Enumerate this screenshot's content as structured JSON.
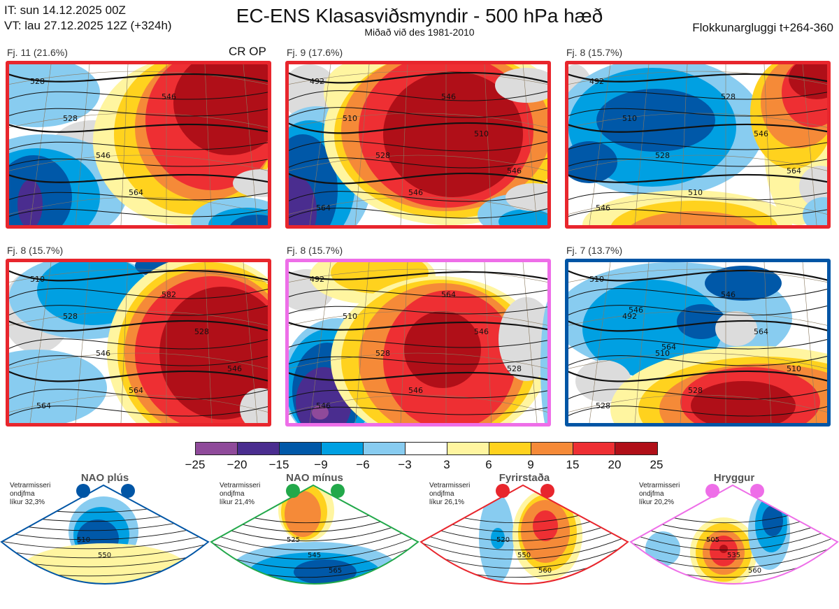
{
  "header": {
    "init_time": "IT: sun 14.12.2025 00Z",
    "valid_time": "VT: lau 27.12.2025 12Z  (+324h)",
    "title": "EC-ENS Klasasviðsmyndir - 500 hPa hæð",
    "subtitle": "Miðað við des 1981-2010",
    "window": "Flokkunargluggi t+264-360"
  },
  "crop_label": "CR OP",
  "panels": [
    {
      "label": "Fj. 11 (21.6%)",
      "border": "#e8262d",
      "contours": [
        "528",
        "528",
        "546",
        "564",
        "546"
      ]
    },
    {
      "label": "Fj. 9 (17.6%)",
      "border": "#e8262d",
      "contours": [
        "492",
        "510",
        "528",
        "546",
        "546",
        "510",
        "546",
        "564"
      ]
    },
    {
      "label": "Fj. 8 (15.7%)",
      "border": "#e8262d",
      "contours": [
        "492",
        "510",
        "528",
        "510",
        "528",
        "546",
        "564",
        "546"
      ]
    },
    {
      "label": "Fj. 8 (15.7%)",
      "border": "#e8262d",
      "contours": [
        "510",
        "528",
        "546",
        "564",
        "582",
        "528",
        "546",
        "564"
      ]
    },
    {
      "label": "Fj. 8 (15.7%)",
      "border": "#ee6ee8",
      "contours": [
        "492",
        "510",
        "528",
        "546",
        "564",
        "546",
        "528",
        "546"
      ]
    },
    {
      "label": "Fj. 7 (13.7%)",
      "border": "#0055a5",
      "contours": [
        "510",
        "492",
        "510",
        "528",
        "546",
        "564",
        "510",
        "528",
        "546",
        "564"
      ]
    }
  ],
  "colorbar": {
    "ticks": [
      "−25",
      "−20",
      "−15",
      "−9",
      "−6",
      "−3",
      "3",
      "6",
      "9",
      "15",
      "20",
      "25"
    ],
    "colors": [
      "#8f4a9a",
      "#4a2d8f",
      "#0058a8",
      "#00a0e2",
      "#88ccf0",
      "#ffffff",
      "#fff5a0",
      "#ffd21e",
      "#f58a38",
      "#ee2f33",
      "#b00f18"
    ]
  },
  "regimes": [
    {
      "name": "NAO plús",
      "line1": "Vetrarmisseri",
      "line2": "ondjfma",
      "line3": "líkur 32,3%",
      "color": "#0055a5",
      "contours": [
        "510",
        "550"
      ]
    },
    {
      "name": "NAO mínus",
      "line1": "Vetrarmisseri",
      "line2": "ondjfma",
      "line3": "líkur 21,4%",
      "color": "#22a84a",
      "contours": [
        "525",
        "545",
        "565"
      ]
    },
    {
      "name": "Fyrirstaða",
      "line1": "Vetrarmisseri",
      "line2": "ondjfma",
      "line3": "líkur 26,1%",
      "color": "#e8262d",
      "contours": [
        "520",
        "550",
        "560"
      ]
    },
    {
      "name": "Hryggur",
      "line1": "Vetrarmisseri",
      "line2": "ondjfma",
      "line3": "líkur 20,2%",
      "color": "#ee6ee8",
      "contours": [
        "505",
        "535",
        "560"
      ]
    }
  ]
}
